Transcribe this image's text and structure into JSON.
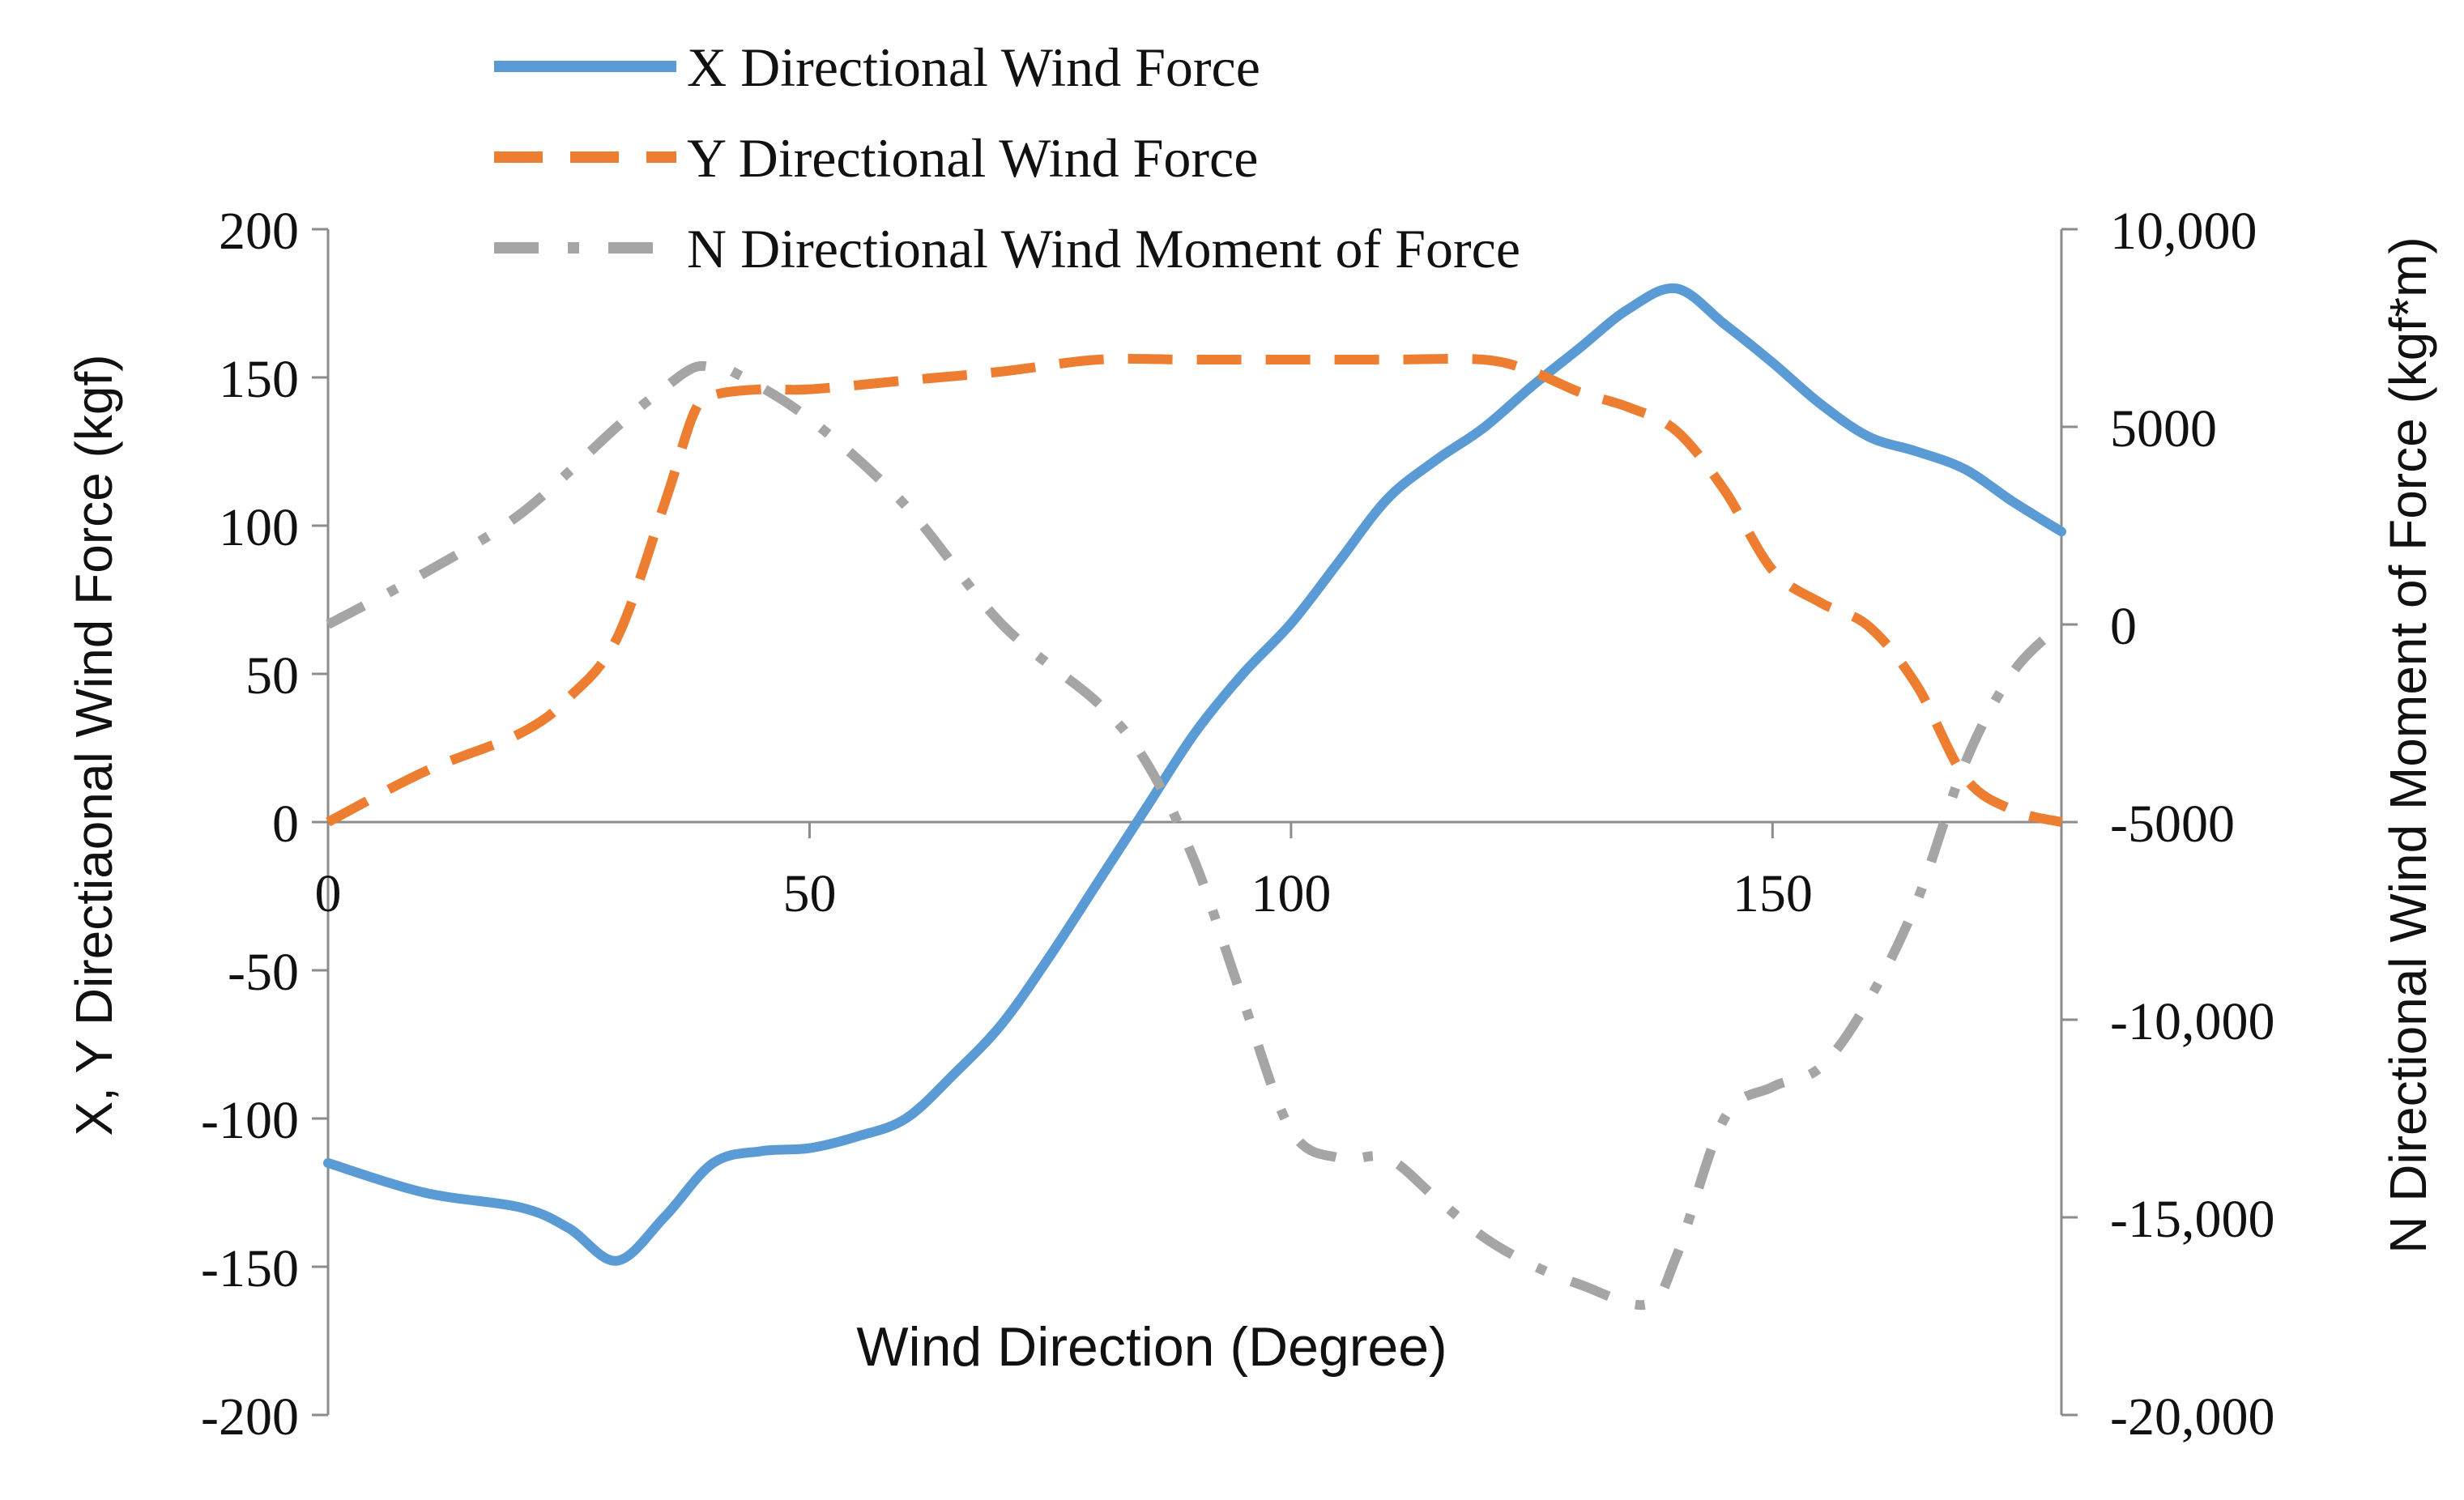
{
  "chart_data": {
    "type": "line",
    "xlabel": "Wind Direction (Degree)",
    "ylabel_left": "X, Y Directiaonal Wind Force (kgf)",
    "ylabel_right": "N Directional Wind Moment of Force (kgf*m)",
    "xlim": [
      0,
      180
    ],
    "ylim_left": [
      -200,
      200
    ],
    "ylim_right": [
      -20000,
      10000
    ],
    "x_ticks": [
      "0",
      "50",
      "100",
      "150"
    ],
    "x_tick_values": [
      0,
      50,
      100,
      150
    ],
    "y_left_ticks": [
      "200",
      "150",
      "100",
      "50",
      "0",
      "-50",
      "-100",
      "-150",
      "-200"
    ],
    "y_left_tick_values": [
      200,
      150,
      100,
      50,
      0,
      -50,
      -100,
      -150,
      -200
    ],
    "y_right_ticks": [
      "10,000",
      "5000",
      "0",
      "-5000",
      "-10,000",
      "-15,000",
      "-20,000"
    ],
    "y_right_tick_values": [
      10000,
      5000,
      0,
      -5000,
      -10000,
      -15000,
      -20000
    ],
    "legend_position": "top-left",
    "grid": false,
    "series": [
      {
        "name": "X Directional Wind Force",
        "axis": "left",
        "color": "#5b9bd5",
        "dash": "solid",
        "x": [
          0,
          10,
          20,
          25,
          30,
          35,
          40,
          45,
          50,
          55,
          60,
          65,
          70,
          75,
          80,
          85,
          90,
          95,
          100,
          105,
          110,
          115,
          120,
          125,
          130,
          135,
          140,
          145,
          150,
          155,
          160,
          165,
          170,
          175,
          180
        ],
        "y": [
          -115,
          -125,
          -130,
          -137,
          -148,
          -133,
          -115,
          -111,
          -110,
          -106,
          -100,
          -85,
          -68,
          -45,
          -20,
          5,
          30,
          50,
          67,
          88,
          109,
          122,
          133,
          147,
          160,
          173,
          180,
          168,
          155,
          141,
          130,
          125,
          119,
          108,
          98
        ]
      },
      {
        "name": "Y Directional Wind Force",
        "axis": "left",
        "color": "#ed7d31",
        "dash": "long-dash",
        "x": [
          0,
          10,
          20,
          25,
          30,
          35,
          38,
          40,
          45,
          50,
          60,
          70,
          80,
          90,
          100,
          110,
          120,
          125,
          130,
          135,
          140,
          145,
          150,
          155,
          160,
          165,
          170,
          175,
          180
        ],
        "y": [
          0,
          17,
          30,
          42,
          62,
          108,
          138,
          144,
          146,
          146,
          149,
          152,
          156,
          156,
          156,
          156,
          156,
          152,
          145,
          140,
          132,
          112,
          85,
          74,
          66,
          46,
          15,
          4,
          0
        ]
      },
      {
        "name": "N Directional Wind Moment of Force",
        "axis": "right",
        "color": "#a5a5a5",
        "dash": "dash-dot",
        "x": [
          0,
          10,
          20,
          30,
          35,
          38,
          40,
          42,
          50,
          60,
          70,
          80,
          85,
          90,
          95,
          100,
          105,
          110,
          115,
          120,
          125,
          130,
          137,
          140,
          145,
          150,
          155,
          160,
          165,
          170,
          175,
          180
        ],
        "y": [
          0,
          1300,
          2800,
          5000,
          6000,
          6500,
          6500,
          6400,
          5200,
          3000,
          0,
          -2000,
          -3500,
          -6000,
          -9500,
          -12800,
          -13500,
          -13500,
          -14500,
          -15500,
          -16200,
          -16700,
          -17200,
          -16000,
          -12500,
          -11700,
          -11200,
          -9500,
          -7000,
          -3500,
          -1200,
          0
        ]
      }
    ]
  }
}
